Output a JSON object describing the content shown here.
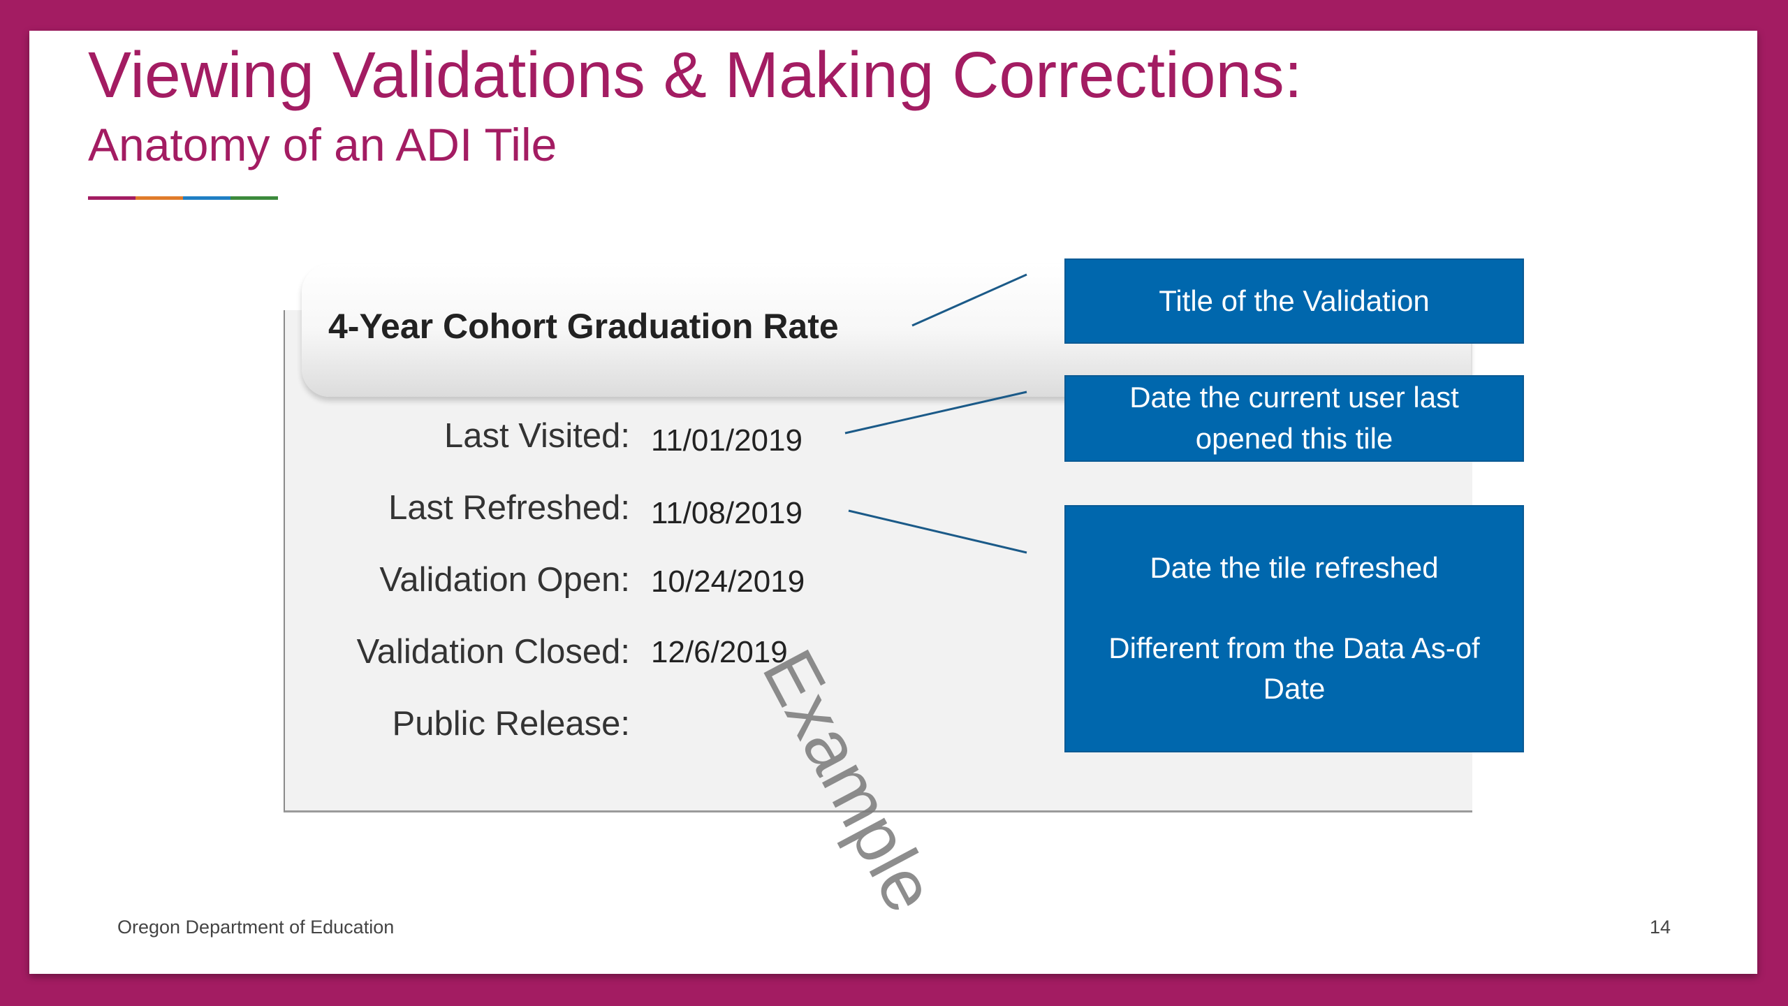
{
  "slide": {
    "title": "Viewing Validations & Making Corrections:",
    "subtitle": "Anatomy of an ADI Tile",
    "accent_colors": [
      "#a31c62",
      "#e07b2a",
      "#1f7fc4",
      "#3c8a3c"
    ],
    "footer_org": "Oregon Department of Education",
    "page_number": "14"
  },
  "tile": {
    "title": "4-Year Cohort Graduation Rate",
    "fields": [
      {
        "label": "Last Visited:",
        "value": "11/01/2019"
      },
      {
        "label": "Last Refreshed:",
        "value": "11/08/2019"
      },
      {
        "label": "Validation Open:",
        "value": "10/24/2019"
      },
      {
        "label": "Validation Closed:",
        "value": "12/6/2019"
      },
      {
        "label": "Public Release:",
        "value": ""
      }
    ],
    "watermark": "Example"
  },
  "callouts": {
    "title_callout": "Title of the Validation",
    "visited_callout": "Date the current user last opened this tile",
    "refreshed_callout_line1": "Date the tile refreshed",
    "refreshed_callout_line2": "Different from the Data As-of Date",
    "callout_color": "#0067ad"
  }
}
